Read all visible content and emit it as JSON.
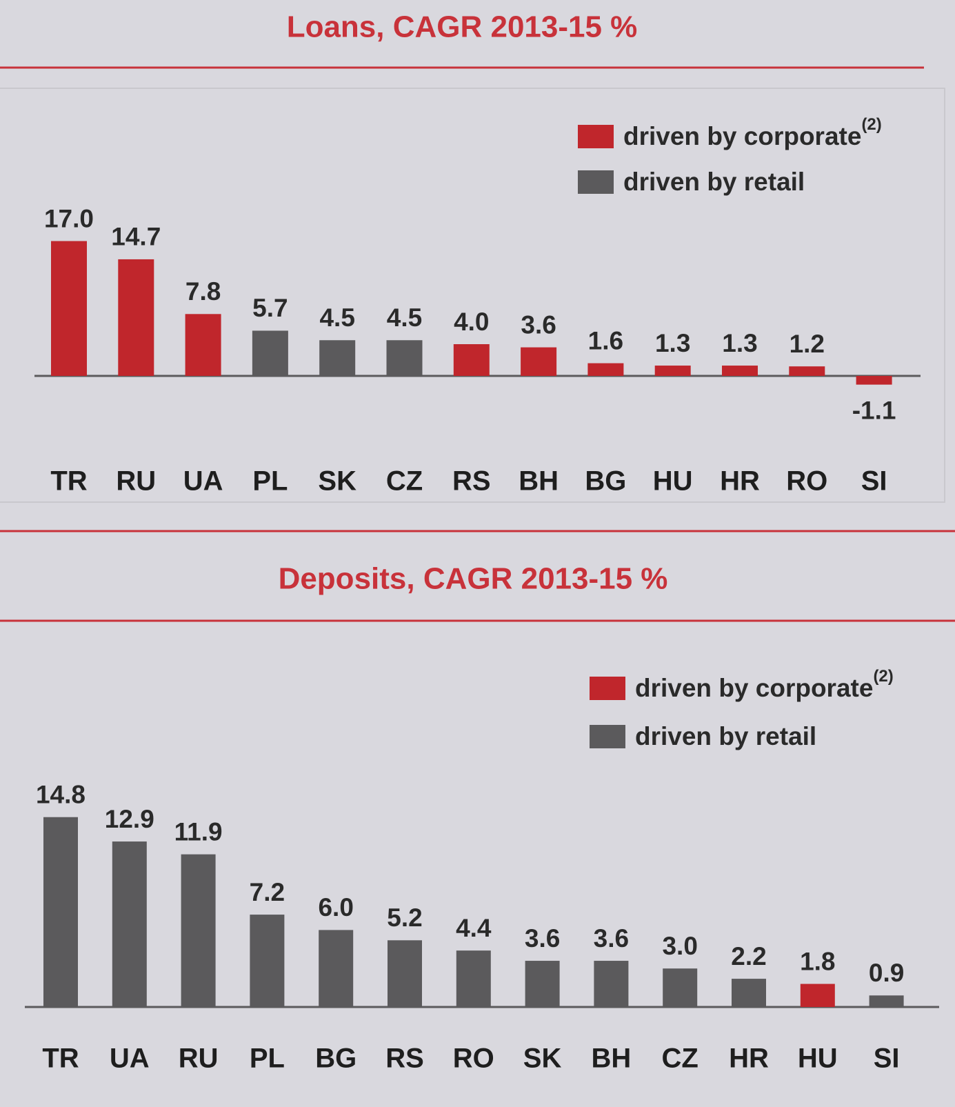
{
  "chart_data": [
    {
      "type": "bar",
      "title": "Loans,  CAGR 2013-15  %",
      "legend": [
        {
          "name": "driven by corporate",
          "superscript": "(2)",
          "color": "#c0262c"
        },
        {
          "name": "driven by retail",
          "color": "#5b5a5c"
        }
      ],
      "categories": [
        "TR",
        "RU",
        "UA",
        "PL",
        "SK",
        "CZ",
        "RS",
        "BH",
        "BG",
        "HU",
        "HR",
        "RO",
        "SI"
      ],
      "values": [
        17.0,
        14.7,
        7.8,
        5.7,
        4.5,
        4.5,
        4.0,
        3.6,
        1.6,
        1.3,
        1.3,
        1.2,
        -1.1
      ],
      "value_labels": [
        "17.0",
        "14.7",
        "7.8",
        "5.7",
        "4.5",
        "4.5",
        "4.0",
        "3.6",
        "1.6",
        "1.3",
        "1.3",
        "1.2",
        "-1.1"
      ],
      "colors": [
        "#c0262c",
        "#c0262c",
        "#c0262c",
        "#5b5a5c",
        "#5b5a5c",
        "#5b5a5c",
        "#c0262c",
        "#c0262c",
        "#c0262c",
        "#c0262c",
        "#c0262c",
        "#c0262c",
        "#c0262c"
      ]
    },
    {
      "type": "bar",
      "title": "Deposits, CAGR 2013-15  %",
      "legend": [
        {
          "name": "driven by corporate",
          "superscript": "(2)",
          "color": "#c0262c"
        },
        {
          "name": "driven by retail",
          "color": "#5b5a5c"
        }
      ],
      "categories": [
        "TR",
        "UA",
        "RU",
        "PL",
        "BG",
        "RS",
        "RO",
        "SK",
        "BH",
        "CZ",
        "HR",
        "HU",
        "SI"
      ],
      "values": [
        14.8,
        12.9,
        11.9,
        7.2,
        6.0,
        5.2,
        4.4,
        3.6,
        3.6,
        3.0,
        2.2,
        1.8,
        0.9
      ],
      "value_labels": [
        "14.8",
        "12.9",
        "11.9",
        "7.2",
        "6.0",
        "5.2",
        "4.4",
        "3.6",
        "3.6",
        "3.0",
        "2.2",
        "1.8",
        "0.9"
      ],
      "colors": [
        "#5b5a5c",
        "#5b5a5c",
        "#5b5a5c",
        "#5b5a5c",
        "#5b5a5c",
        "#5b5a5c",
        "#5b5a5c",
        "#5b5a5c",
        "#5b5a5c",
        "#5b5a5c",
        "#5b5a5c",
        "#c0262c",
        "#5b5a5c"
      ]
    }
  ]
}
